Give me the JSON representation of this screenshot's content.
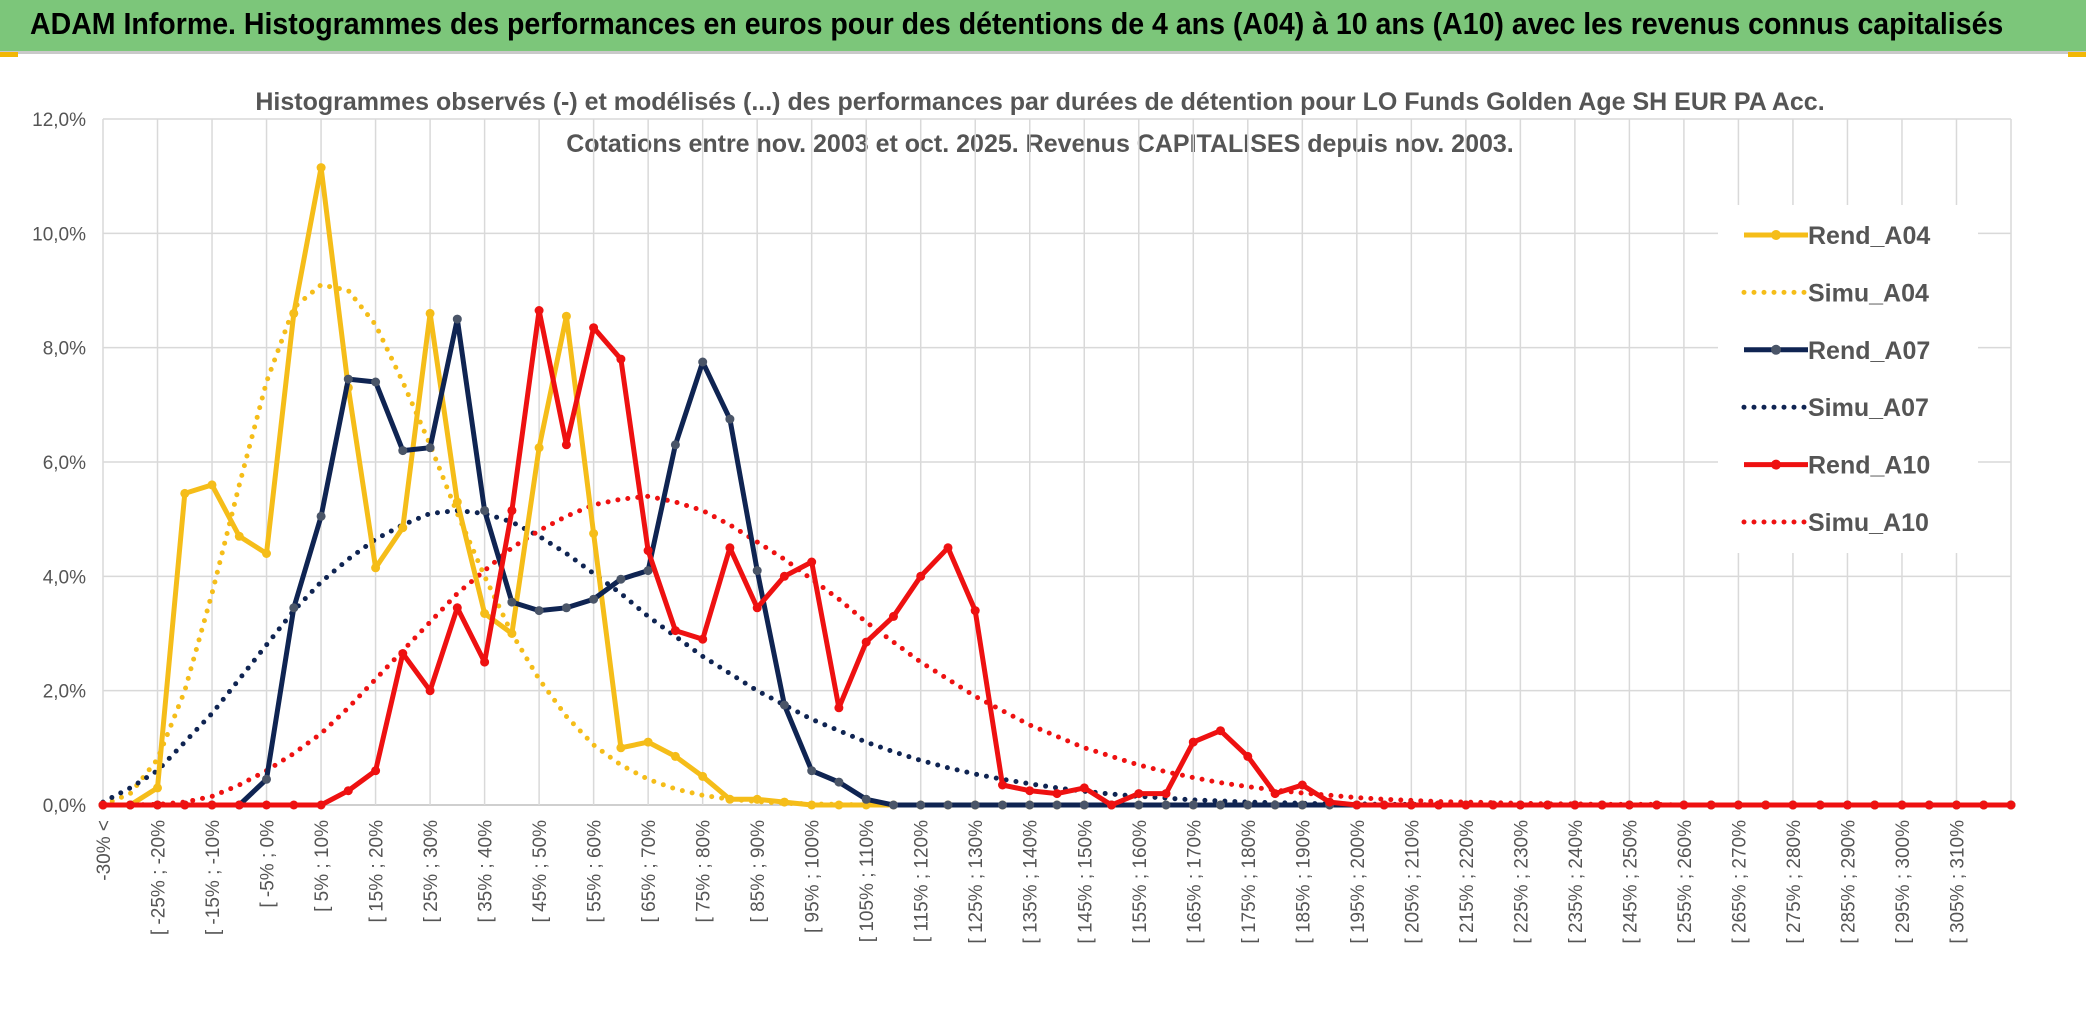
{
  "banner": {
    "title": "ADAM Informe. Histogrammes des performances en euros pour des détentions de 4 ans (A04) à 10 ans (A10) avec les revenus connus capitalisés"
  },
  "colors": {
    "banner_bg": "#7cc67a",
    "yellow": "#f5bd19",
    "navy": "#0f2452",
    "red": "#ee1111",
    "grid": "#d9d9d9"
  },
  "chart_data": {
    "type": "line",
    "title": "Histogrammes observés (-) et modélisés (...) des performances par durées de détention pour LO Funds Golden Age SH EUR PA Acc.",
    "subtitle": "Cotations entre nov. 2003 et oct. 2025. Revenus CAPITALISES depuis nov. 2003.",
    "xlabel": "",
    "ylabel": "",
    "ylim": [
      0,
      12
    ],
    "yticks": [
      "0,0%",
      "2,0%",
      "4,0%",
      "6,0%",
      "8,0%",
      "10,0%",
      "12,0%"
    ],
    "grid": true,
    "legend_position": "right",
    "x_tick_labels": [
      "-30% <",
      "[ -25% ; -20%",
      "[ -15% ; -10%",
      "[ -5% ; 0%",
      "[ 5% ; 10%",
      "[ 15% ; 20%",
      "[ 25% ; 30%",
      "[ 35% ; 40%",
      "[ 45% ; 50%",
      "[ 55% ; 60%",
      "[ 65% ; 70%",
      "[ 75% ; 80%",
      "[ 85% ; 90%",
      "[ 95% ; 100%",
      "[ 105% ; 110%",
      "[ 115% ; 120%",
      "[ 125% ; 130%",
      "[ 135% ; 140%",
      "[ 145% ; 150%",
      "[ 155% ; 160%",
      "[ 165% ; 170%",
      "[ 175% ; 180%",
      "[ 185% ; 190%",
      "[ 195% ; 200%",
      "[ 205% ; 210%",
      "[ 215% ; 220%",
      "[ 225% ; 230%",
      "[ 235% ; 240%",
      "[ 245% ; 250%",
      "[ 255% ; 260%",
      "[ 265% ; 270%",
      "[ 275% ; 280%",
      "[ 285% ; 290%",
      "[ 295% ; 300%",
      "[ 305% ; 310%"
    ],
    "n_points": 71,
    "series": [
      {
        "name": "Rend_A04",
        "style": "solid",
        "color": "#f5bd19",
        "values": [
          0,
          0,
          0.3,
          5.45,
          5.6,
          4.7,
          4.4,
          8.6,
          11.15,
          7.3,
          4.15,
          4.85,
          8.6,
          5.3,
          3.35,
          3,
          6.25,
          8.55,
          4.75,
          1,
          1.1,
          0.85,
          0.5,
          0.1,
          0.1,
          0.05,
          0,
          0,
          0,
          0,
          0,
          0,
          0,
          0,
          0,
          0,
          0,
          0,
          0,
          0,
          0,
          0,
          0,
          0,
          0,
          0,
          0,
          0,
          0,
          0,
          0,
          0,
          0,
          0,
          0,
          0,
          0,
          0,
          0,
          0,
          0,
          0,
          0,
          0,
          0,
          0,
          0,
          0,
          0,
          0,
          0
        ]
      },
      {
        "name": "Simu_A04",
        "style": "dotted",
        "color": "#f5bd19",
        "values": [
          0,
          0.2,
          0.8,
          2,
          3.7,
          5.6,
          7.4,
          8.7,
          9.1,
          9,
          8.4,
          7.4,
          6.3,
          5.1,
          4,
          3,
          2.2,
          1.55,
          1.05,
          0.7,
          0.45,
          0.28,
          0.17,
          0.1,
          0.06,
          0.03,
          0.02,
          0.01,
          0,
          0,
          0,
          0,
          0,
          0,
          0,
          0,
          0,
          0,
          0,
          0,
          0,
          0,
          0,
          0,
          0,
          0,
          0,
          0,
          0,
          0,
          0,
          0,
          0,
          0,
          0,
          0,
          0,
          0,
          0,
          0,
          0,
          0,
          0,
          0,
          0,
          0,
          0,
          0,
          0,
          0,
          0
        ]
      },
      {
        "name": "Rend_A07",
        "style": "solid",
        "color": "#0f2452",
        "values": [
          0,
          0,
          0,
          0,
          0,
          0,
          0.45,
          3.45,
          5.05,
          7.45,
          7.4,
          6.2,
          6.25,
          8.5,
          5.15,
          3.55,
          3.4,
          3.45,
          3.6,
          3.95,
          4.1,
          6.3,
          7.75,
          6.75,
          4.1,
          1.75,
          0.6,
          0.4,
          0.1,
          0,
          0,
          0,
          0,
          0,
          0,
          0,
          0,
          0,
          0,
          0,
          0,
          0,
          0,
          0,
          0,
          0,
          0,
          0,
          0,
          0,
          0,
          0,
          0,
          0,
          0,
          0,
          0,
          0,
          0,
          0,
          0,
          0,
          0,
          0,
          0,
          0,
          0,
          0,
          0,
          0,
          0
        ]
      },
      {
        "name": "Simu_A07",
        "style": "dotted",
        "color": "#0f2452",
        "values": [
          0.05,
          0.3,
          0.6,
          1.1,
          1.6,
          2.2,
          2.8,
          3.4,
          3.9,
          4.3,
          4.65,
          4.9,
          5.1,
          5.15,
          5.1,
          4.95,
          4.7,
          4.4,
          4.05,
          3.7,
          3.3,
          2.95,
          2.6,
          2.3,
          2,
          1.75,
          1.5,
          1.3,
          1.1,
          0.93,
          0.78,
          0.65,
          0.54,
          0.45,
          0.37,
          0.3,
          0.24,
          0.19,
          0.15,
          0.12,
          0.09,
          0.07,
          0.05,
          0.04,
          0.03,
          0.02,
          0.02,
          0.01,
          0.01,
          0,
          0,
          0,
          0,
          0,
          0,
          0,
          0,
          0,
          0,
          0,
          0,
          0,
          0,
          0,
          0,
          0,
          0,
          0,
          0,
          0,
          0
        ]
      },
      {
        "name": "Rend_A10",
        "style": "solid",
        "color": "#ee1111",
        "values": [
          0,
          0,
          0,
          0,
          0,
          0,
          0,
          0,
          0,
          0.25,
          0.6,
          2.65,
          2,
          3.45,
          2.5,
          5.15,
          8.65,
          6.3,
          8.35,
          7.8,
          4.45,
          3.05,
          2.9,
          4.5,
          3.45,
          4,
          4.25,
          1.7,
          2.85,
          3.3,
          4,
          4.5,
          3.4,
          0.35,
          0.25,
          0.2,
          0.3,
          0,
          0.2,
          0.2,
          1.1,
          1.3,
          0.85,
          0.2,
          0.35,
          0.05,
          0,
          0,
          0,
          0,
          0,
          0,
          0,
          0,
          0,
          0,
          0,
          0,
          0,
          0,
          0,
          0,
          0,
          0,
          0,
          0,
          0,
          0,
          0,
          0,
          0
        ]
      },
      {
        "name": "Simu_A10",
        "style": "dotted",
        "color": "#ee1111",
        "values": [
          0,
          0,
          0.01,
          0.05,
          0.15,
          0.35,
          0.6,
          0.9,
          1.25,
          1.7,
          2.2,
          2.7,
          3.2,
          3.7,
          4.1,
          4.5,
          4.8,
          5.05,
          5.25,
          5.35,
          5.4,
          5.3,
          5.15,
          4.9,
          4.6,
          4.3,
          3.95,
          3.6,
          3.2,
          2.85,
          2.5,
          2.2,
          1.9,
          1.65,
          1.4,
          1.2,
          1,
          0.85,
          0.7,
          0.58,
          0.48,
          0.39,
          0.32,
          0.26,
          0.21,
          0.17,
          0.13,
          0.1,
          0.08,
          0.06,
          0.05,
          0.04,
          0.03,
          0.02,
          0.02,
          0.01,
          0.01,
          0.01,
          0,
          0,
          0,
          0,
          0,
          0,
          0,
          0,
          0,
          0,
          0,
          0,
          0
        ]
      }
    ]
  }
}
